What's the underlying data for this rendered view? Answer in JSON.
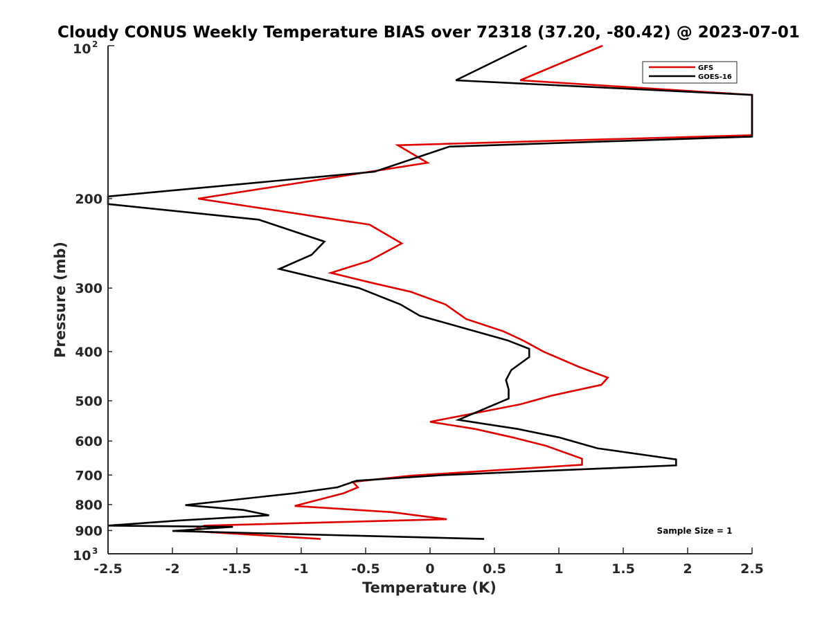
{
  "chart_data": {
    "type": "line",
    "title": "Cloudy CONUS Weekly Temperature BIAS over 72318 (37.20, -80.42) @ 2023-07-01",
    "xlabel": "Temperature (K)",
    "ylabel": "Pressure (mb)",
    "xlim": [
      -2.5,
      2.5
    ],
    "ylim": [
      100,
      1000
    ],
    "y_scale": "log",
    "y_reversed": true,
    "xticks": [
      -2.5,
      -2,
      -1.5,
      -1,
      -0.5,
      0,
      0.5,
      1,
      1.5,
      2,
      2.5
    ],
    "xtick_labels": [
      "-2.5",
      "-2",
      "-1.5",
      "-1",
      "-0.5",
      "0",
      "0.5",
      "1",
      "1.5",
      "2",
      "2.5"
    ],
    "yticks": [
      200,
      300,
      400,
      500,
      600,
      700,
      800,
      900
    ],
    "ytick_labels": [
      "200",
      "300",
      "400",
      "500",
      "600",
      "700",
      "800",
      "900"
    ],
    "y_end_labels": {
      "top": {
        "base": "10",
        "exp": "2",
        "value": 100
      },
      "bottom": {
        "base": "10",
        "exp": "3",
        "value": 1000
      }
    },
    "grid": false,
    "legend_position": "top-right",
    "annotation": "Sample Size = 1",
    "series": [
      {
        "name": "GFS",
        "color": "#e00000",
        "points": [
          [
            1.34,
            100
          ],
          [
            0.7,
            117
          ],
          [
            2.5,
            125
          ],
          [
            2.5,
            150
          ],
          [
            -0.25,
            157
          ],
          [
            -0.02,
            170
          ],
          [
            -1.8,
            200
          ],
          [
            -0.47,
            225
          ],
          [
            -0.22,
            245
          ],
          [
            -0.47,
            265
          ],
          [
            -0.77,
            280
          ],
          [
            -0.45,
            293
          ],
          [
            -0.15,
            305
          ],
          [
            0.12,
            323
          ],
          [
            0.28,
            345
          ],
          [
            0.57,
            365
          ],
          [
            0.72,
            380
          ],
          [
            0.88,
            400
          ],
          [
            1.15,
            428
          ],
          [
            1.38,
            450
          ],
          [
            1.33,
            465
          ],
          [
            0.95,
            488
          ],
          [
            0.7,
            508
          ],
          [
            0.0,
            550
          ],
          [
            0.35,
            568
          ],
          [
            0.64,
            590
          ],
          [
            0.9,
            613
          ],
          [
            1.18,
            650
          ],
          [
            1.18,
            668
          ],
          [
            -0.15,
            702
          ],
          [
            -0.6,
            722
          ],
          [
            -0.56,
            740
          ],
          [
            -0.67,
            760
          ],
          [
            -1.05,
            805
          ],
          [
            -0.3,
            828
          ],
          [
            0.13,
            855
          ],
          [
            -1.75,
            880
          ],
          [
            -1.86,
            902
          ],
          [
            -1.45,
            915
          ],
          [
            -0.85,
            935
          ]
        ]
      },
      {
        "name": "GOES-16",
        "color": "#000000",
        "points": [
          [
            0.75,
            100
          ],
          [
            0.2,
            117
          ],
          [
            2.5,
            125
          ],
          [
            2.5,
            151
          ],
          [
            0.15,
            158
          ],
          [
            -0.43,
            177
          ],
          [
            -2.5,
            198
          ],
          [
            -2.5,
            205
          ],
          [
            -1.33,
            220
          ],
          [
            -0.82,
            243
          ],
          [
            -0.92,
            258
          ],
          [
            -1.17,
            275
          ],
          [
            -0.55,
            300
          ],
          [
            -0.23,
            323
          ],
          [
            -0.08,
            340
          ],
          [
            0.6,
            380
          ],
          [
            0.77,
            395
          ],
          [
            0.77,
            410
          ],
          [
            0.63,
            435
          ],
          [
            0.59,
            455
          ],
          [
            0.61,
            475
          ],
          [
            0.61,
            495
          ],
          [
            0.22,
            545
          ],
          [
            0.68,
            568
          ],
          [
            1.0,
            590
          ],
          [
            1.3,
            620
          ],
          [
            1.91,
            652
          ],
          [
            1.91,
            670
          ],
          [
            0.1,
            700
          ],
          [
            -0.57,
            718
          ],
          [
            -0.72,
            740
          ],
          [
            -1.05,
            760
          ],
          [
            -1.9,
            802
          ],
          [
            -1.45,
            820
          ],
          [
            -1.25,
            840
          ],
          [
            -1.95,
            860
          ],
          [
            -2.5,
            880
          ],
          [
            -1.53,
            885
          ],
          [
            -2.0,
            902
          ],
          [
            0.42,
            935
          ]
        ]
      }
    ]
  }
}
